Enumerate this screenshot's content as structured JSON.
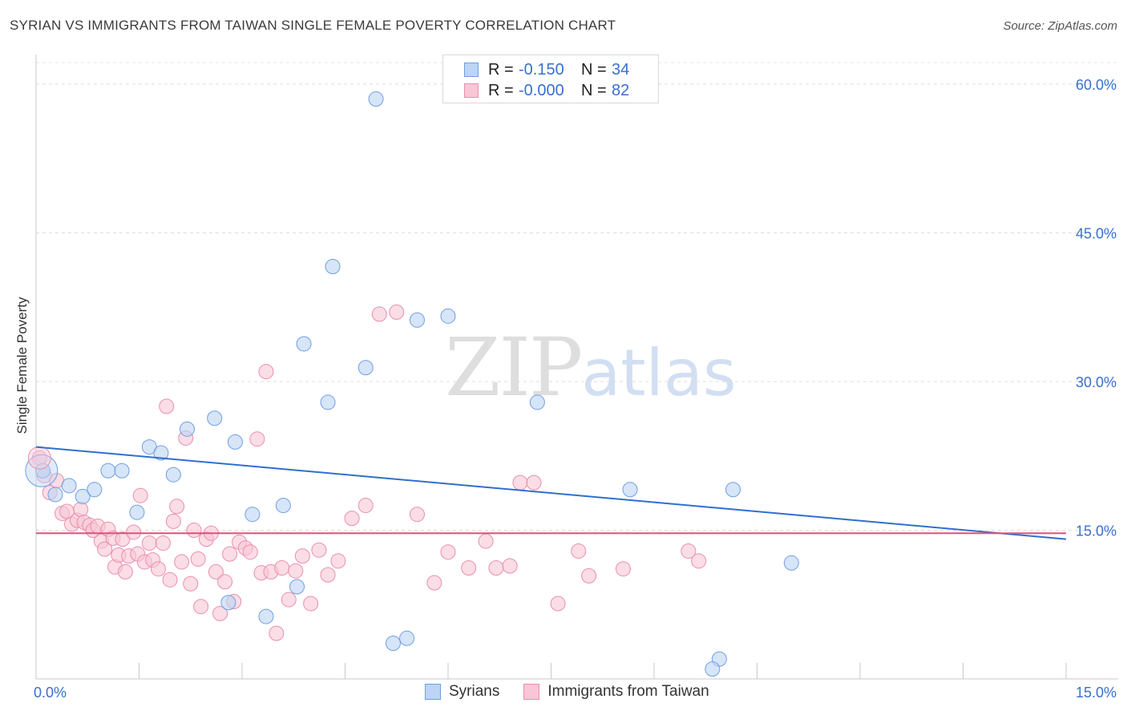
{
  "header": {
    "title": "SYRIAN VS IMMIGRANTS FROM TAIWAN SINGLE FEMALE POVERTY CORRELATION CHART",
    "source": "Source: ZipAtlas.com"
  },
  "watermark": {
    "zip": "ZIP",
    "atlas": "atlas"
  },
  "legend": {
    "rows": [
      {
        "r_label": "R =",
        "r_value": "-0.150",
        "n_label": "N =",
        "n_value": "34",
        "fill": "#bcd4f5",
        "stroke": "#6f9fe0"
      },
      {
        "r_label": "R =",
        "r_value": "-0.000",
        "n_label": "N =",
        "n_value": "82",
        "fill": "#f9c6d6",
        "stroke": "#e98fad"
      }
    ]
  },
  "bottom_legend": {
    "items": [
      {
        "label": "Syrians",
        "fill": "#bcd4f5",
        "stroke": "#6f9fe0"
      },
      {
        "label": "Immigrants from Taiwan",
        "fill": "#f9c6d6",
        "stroke": "#e98fad"
      }
    ]
  },
  "chart_data": {
    "type": "scatter",
    "title": "SYRIAN VS IMMIGRANTS FROM TAIWAN SINGLE FEMALE POVERTY CORRELATION CHART",
    "xlabel": "",
    "ylabel": "Single Female Poverty",
    "xlim": [
      0,
      15
    ],
    "ylim": [
      0,
      62.5
    ],
    "x_tick_labels": [
      {
        "value": 0,
        "label": "0.0%"
      },
      {
        "value": 15,
        "label": "15.0%"
      }
    ],
    "y_tick_labels": [
      {
        "value": 15,
        "label": "15.0%"
      },
      {
        "value": 30,
        "label": "30.0%"
      },
      {
        "value": 45,
        "label": "45.0%"
      },
      {
        "value": 60,
        "label": "60.0%"
      }
    ],
    "grid": "horizontal dashed",
    "legend_position": "top-center",
    "series": [
      {
        "name": "Syrians",
        "color": "#6f9fe0",
        "fill": "#bcd4f5",
        "trend": {
          "x": [
            0,
            15
          ],
          "y": [
            23.4,
            14.1
          ],
          "color": "#2f6fce"
        },
        "x": [
          0.1,
          0.28,
          0.48,
          0.68,
          0.85,
          1.05,
          1.25,
          1.47,
          1.65,
          1.82,
          2.0,
          2.2,
          2.6,
          2.9,
          3.15,
          3.35,
          3.6,
          3.9,
          4.25,
          4.32,
          4.8,
          5.2,
          5.55,
          6.0,
          7.3,
          8.65,
          9.95,
          10.15,
          11.0,
          3.8,
          4.95,
          5.4,
          9.85,
          2.8
        ],
        "y": [
          21.0,
          18.6,
          19.5,
          18.4,
          19.1,
          21.0,
          21.0,
          16.8,
          23.4,
          22.8,
          20.6,
          25.2,
          26.3,
          23.9,
          16.6,
          6.3,
          17.5,
          33.8,
          27.9,
          41.6,
          31.4,
          3.6,
          36.2,
          36.6,
          27.9,
          19.1,
          2.0,
          19.1,
          11.7,
          9.3,
          58.5,
          4.1,
          1.0,
          7.7
        ]
      },
      {
        "name": "Immigrants from Taiwan",
        "color": "#e98fad",
        "fill": "#f9c6d6",
        "trend": {
          "x": [
            0,
            15
          ],
          "y": [
            14.7,
            14.7
          ],
          "color": "#e0507b"
        },
        "x": [
          0.05,
          0.12,
          0.2,
          0.3,
          0.38,
          0.45,
          0.52,
          0.6,
          0.65,
          0.7,
          0.78,
          0.83,
          0.9,
          0.95,
          1.0,
          1.05,
          1.12,
          1.15,
          1.2,
          1.26,
          1.3,
          1.35,
          1.42,
          1.48,
          1.52,
          1.58,
          1.65,
          1.7,
          1.78,
          1.85,
          1.9,
          1.95,
          2.0,
          2.05,
          2.12,
          2.18,
          2.25,
          2.3,
          2.36,
          2.4,
          2.48,
          2.55,
          2.62,
          2.68,
          2.75,
          2.82,
          2.88,
          2.96,
          3.05,
          3.12,
          3.22,
          3.28,
          3.35,
          3.42,
          3.5,
          3.58,
          3.68,
          3.78,
          3.88,
          4.0,
          4.12,
          4.25,
          4.4,
          4.6,
          4.8,
          5.0,
          5.25,
          5.55,
          5.8,
          6.0,
          6.3,
          6.55,
          6.7,
          6.9,
          7.05,
          7.25,
          7.6,
          7.9,
          8.05,
          8.55,
          9.5,
          9.65
        ],
        "y": [
          22.3,
          20.5,
          18.8,
          20.0,
          16.7,
          16.9,
          15.6,
          16.0,
          17.1,
          15.8,
          15.5,
          15.0,
          15.4,
          13.9,
          13.1,
          15.1,
          14.2,
          11.3,
          12.5,
          14.1,
          10.8,
          12.4,
          14.8,
          12.6,
          18.5,
          11.8,
          13.7,
          12.0,
          11.1,
          13.7,
          27.5,
          10.0,
          15.9,
          17.4,
          11.8,
          24.3,
          9.6,
          15.0,
          12.1,
          7.3,
          14.1,
          14.7,
          10.8,
          6.6,
          9.8,
          12.6,
          7.8,
          13.8,
          13.2,
          12.8,
          24.2,
          10.7,
          31.0,
          10.8,
          4.6,
          11.2,
          8.0,
          10.9,
          12.4,
          7.6,
          13.0,
          10.5,
          11.9,
          16.2,
          17.5,
          36.8,
          37.0,
          16.6,
          9.7,
          12.8,
          11.2,
          13.9,
          11.2,
          11.4,
          19.8,
          19.8,
          7.6,
          12.9,
          10.4,
          11.1,
          12.9,
          11.9
        ]
      }
    ]
  }
}
